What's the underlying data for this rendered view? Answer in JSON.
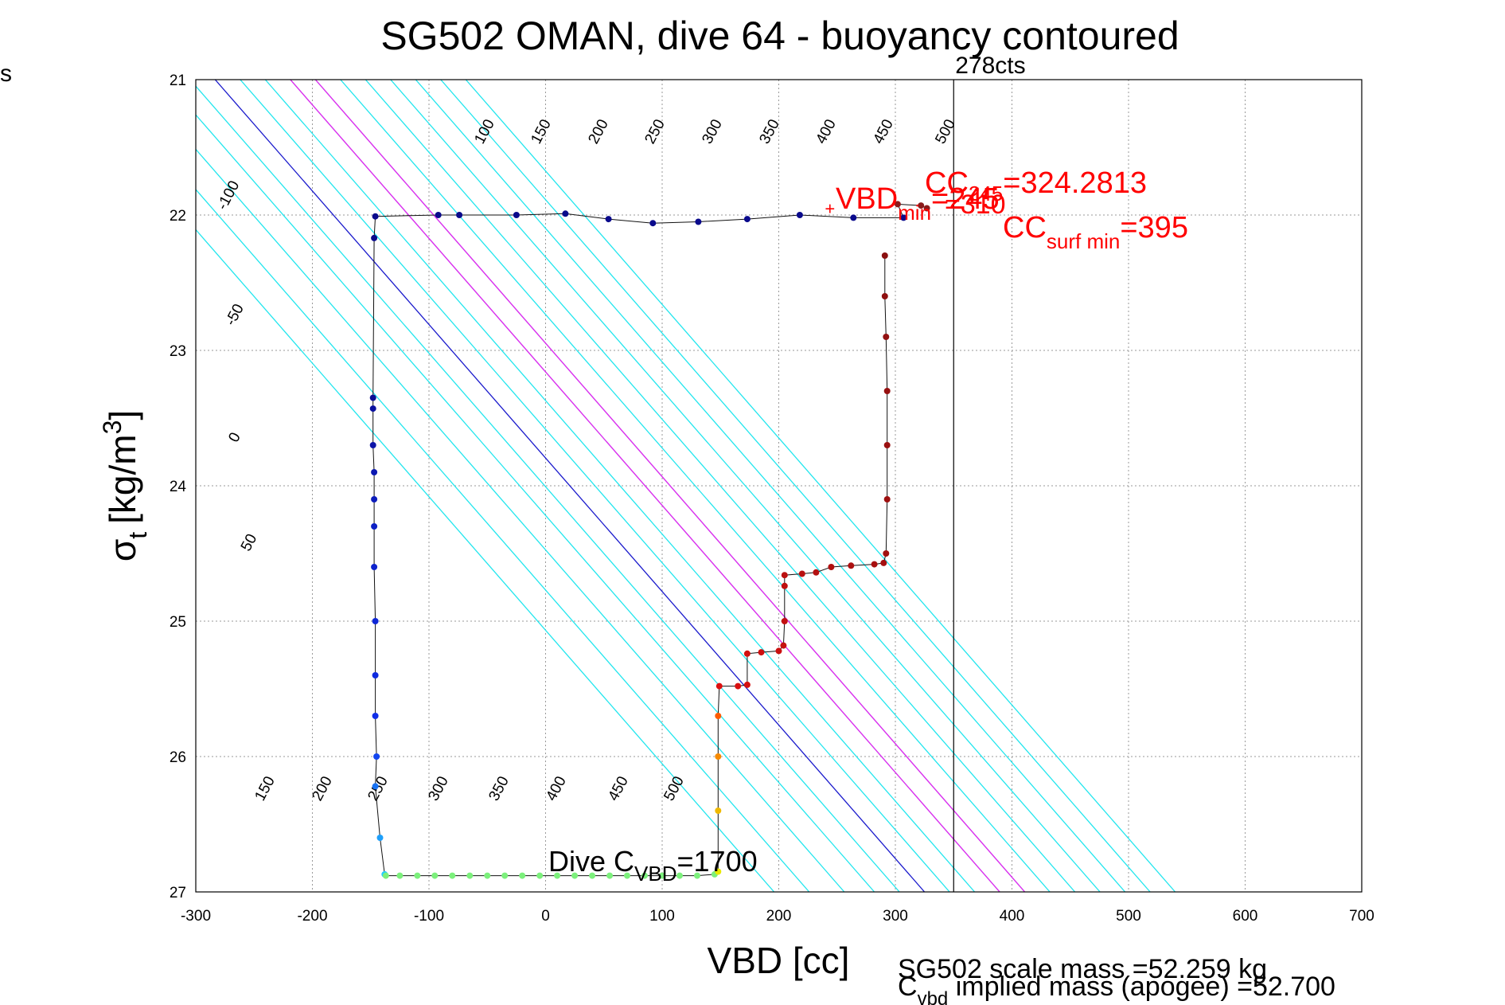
{
  "chart_data": {
    "type": "scatter",
    "title": "SG502 OMAN, dive 64 - buoyancy contoured",
    "xlabel": "VBD [cc]",
    "ylabel_main": "σ",
    "ylabel_sub": "t",
    "ylabel_unit": "[kg/m",
    "ylabel_sup": "3",
    "ylabel_close": "]",
    "xlim": [
      -300,
      700
    ],
    "ylim": [
      21,
      27
    ],
    "y_reversed": true,
    "grid": true,
    "xticks": [
      -300,
      -200,
      -100,
      0,
      100,
      200,
      300,
      400,
      500,
      600,
      700
    ],
    "yticks": [
      21,
      22,
      23,
      24,
      25,
      26,
      27
    ],
    "corner_label": "s",
    "vline": {
      "x": 350,
      "label": "278cts"
    },
    "contours": {
      "cyan_values": [
        -100,
        -50,
        50,
        100,
        150,
        200,
        250,
        300,
        350,
        400,
        450,
        500
      ],
      "magenta_values": [
        150,
        200
      ],
      "blue_values": [
        0
      ],
      "labels_top": [
        "100",
        "150",
        "200",
        "250",
        "300",
        "350",
        "400",
        "450",
        "500"
      ],
      "labels_left": [
        "-100",
        "-50",
        "0",
        "50"
      ],
      "labels_bottom": [
        "150",
        "200",
        "250",
        "300",
        "350",
        "400",
        "450",
        "500"
      ]
    },
    "annotations": {
      "vbd_min": {
        "main": "VBD",
        "sub": "min",
        "suffix": "=245",
        "x": 245,
        "y": 21.95
      },
      "vbd_min_overlap": "=310",
      "cc_label": {
        "main": "CC",
        "sub": "245",
        "suffix": "=324.2813"
      },
      "cc_surf": {
        "main": "CC",
        "sub": "surf min",
        "suffix": "=395"
      },
      "dive_c": {
        "main": "Dive C",
        "sub": "VBD",
        "suffix": "=1700"
      },
      "scale_mass": "SG502 scale mass =52.259 kg",
      "implied_main": "C",
      "implied_sub": "vbd",
      "implied_text": " implied mass (apogee) =52.700"
    },
    "series": [
      {
        "name": "surface",
        "color": "#0a0a8c",
        "points": [
          [
            -146,
            22.01
          ],
          [
            -92,
            22.0
          ],
          [
            -74,
            22.0
          ],
          [
            -25,
            22.0
          ],
          [
            17,
            21.99
          ],
          [
            54,
            22.03
          ],
          [
            92,
            22.06
          ],
          [
            131,
            22.05
          ],
          [
            173,
            22.03
          ],
          [
            218,
            22.0
          ],
          [
            264,
            22.02
          ],
          [
            307,
            22.02
          ]
        ]
      },
      {
        "name": "descent",
        "color": "#0a0a8c",
        "points": [
          [
            -147,
            22.17
          ],
          [
            -148,
            23.35
          ],
          [
            -148,
            23.43
          ],
          [
            -148,
            23.7
          ],
          [
            -147,
            23.9
          ],
          [
            -147,
            24.1
          ],
          [
            -147,
            24.3
          ],
          [
            -147,
            24.6
          ],
          [
            -146,
            25.0
          ],
          [
            -146,
            25.4
          ],
          [
            -146,
            25.7
          ],
          [
            -145,
            26.0
          ],
          [
            -146,
            26.22
          ],
          [
            -142,
            26.6
          ],
          [
            -138,
            26.87
          ]
        ]
      },
      {
        "name": "bottom",
        "color": "#7cf07c",
        "points": [
          [
            -137,
            26.88
          ],
          [
            -125,
            26.88
          ],
          [
            -110,
            26.88
          ],
          [
            -95,
            26.88
          ],
          [
            -80,
            26.88
          ],
          [
            -65,
            26.88
          ],
          [
            -50,
            26.88
          ],
          [
            -35,
            26.88
          ],
          [
            -20,
            26.88
          ],
          [
            -5,
            26.88
          ],
          [
            10,
            26.88
          ],
          [
            25,
            26.88
          ],
          [
            40,
            26.88
          ],
          [
            55,
            26.88
          ],
          [
            70,
            26.88
          ],
          [
            85,
            26.88
          ],
          [
            100,
            26.88
          ],
          [
            115,
            26.88
          ],
          [
            130,
            26.88
          ],
          [
            145,
            26.87
          ]
        ]
      },
      {
        "name": "ascent",
        "color": "#c81010",
        "points": [
          [
            148,
            26.85
          ],
          [
            148,
            26.4
          ],
          [
            148,
            26.0
          ],
          [
            148,
            25.7
          ],
          [
            149,
            25.48
          ],
          [
            165,
            25.48
          ],
          [
            173,
            25.47
          ],
          [
            173,
            25.24
          ],
          [
            185,
            25.23
          ],
          [
            200,
            25.22
          ],
          [
            204,
            25.18
          ],
          [
            205,
            25.0
          ],
          [
            205,
            24.74
          ],
          [
            205,
            24.66
          ],
          [
            220,
            24.65
          ],
          [
            232,
            24.64
          ],
          [
            245,
            24.6
          ],
          [
            262,
            24.59
          ],
          [
            282,
            24.58
          ],
          [
            290,
            24.57
          ],
          [
            292,
            24.5
          ],
          [
            293,
            24.1
          ],
          [
            293,
            23.7
          ],
          [
            293,
            23.3
          ],
          [
            292,
            22.9
          ],
          [
            291,
            22.6
          ],
          [
            291,
            22.3
          ]
        ]
      },
      {
        "name": "apogee",
        "color": "#8b1a1a",
        "points": [
          [
            302,
            21.92
          ],
          [
            322,
            21.93
          ],
          [
            327,
            21.95
          ]
        ]
      }
    ]
  }
}
